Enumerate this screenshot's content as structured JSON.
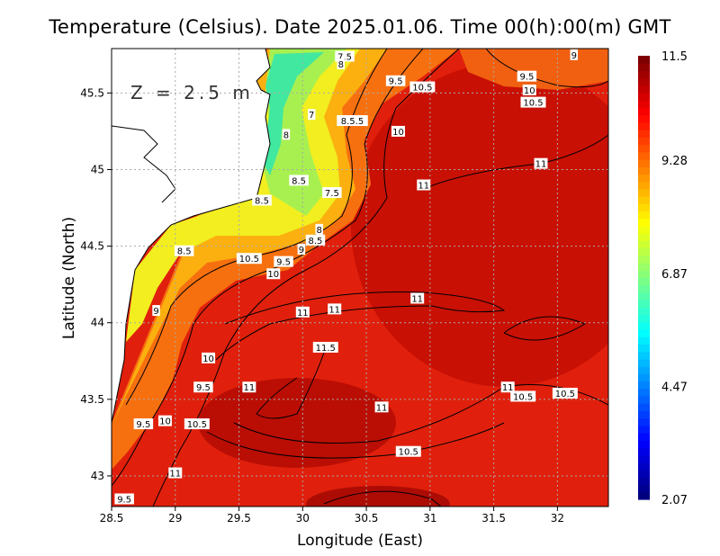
{
  "chart_data": {
    "type": "heatmap",
    "title": "Temperature (Celsius). Date 2025.01.06. Time 00(h):00(m) GMT",
    "xlabel": "Longitude (East)",
    "ylabel": "Latitude (North)",
    "xlim": [
      28.5,
      32.4
    ],
    "ylim": [
      42.8,
      45.79
    ],
    "xticks": [
      "28.5",
      "29",
      "29.5",
      "30",
      "30.5",
      "31",
      "31.5",
      "32"
    ],
    "xtick_values": [
      28.5,
      29,
      29.5,
      30,
      30.5,
      31,
      31.5,
      32
    ],
    "yticks": [
      "43",
      "43.5",
      "44",
      "44.5",
      "45",
      "45.5"
    ],
    "ytick_values": [
      43,
      43.5,
      44,
      44.5,
      45,
      45.5
    ],
    "grid": true,
    "annotation": "Z = 2.5 m",
    "colorbar": {
      "min": 2.07,
      "max": 11.5,
      "tick_labels": [
        "11.5",
        "9.28",
        "6.87",
        "4.47",
        "2.07"
      ],
      "tick_values": [
        11.5,
        9.28,
        6.87,
        4.47,
        2.07
      ],
      "colormap": [
        "#00007f",
        "#0000ff",
        "#0080ff",
        "#00ffff",
        "#80ff80",
        "#ffff00",
        "#ff8000",
        "#ff0000",
        "#7f0000"
      ]
    },
    "contour_labels": [
      {
        "text": "7.5",
        "lon": 30.33,
        "lat": 45.74
      },
      {
        "text": "8",
        "lon": 30.3,
        "lat": 45.69
      },
      {
        "text": "9",
        "lon": 32.13,
        "lat": 45.75
      },
      {
        "text": "9.5",
        "lon": 30.73,
        "lat": 45.58
      },
      {
        "text": "10.5",
        "lon": 30.94,
        "lat": 45.54
      },
      {
        "text": "9.5",
        "lon": 31.76,
        "lat": 45.61
      },
      {
        "text": "10",
        "lon": 31.78,
        "lat": 45.52
      },
      {
        "text": "10.5",
        "lon": 31.81,
        "lat": 45.44
      },
      {
        "text": "7",
        "lon": 30.07,
        "lat": 45.36
      },
      {
        "text": "8.5.5",
        "lon": 30.39,
        "lat": 45.32
      },
      {
        "text": "10",
        "lon": 30.75,
        "lat": 45.25
      },
      {
        "text": "8",
        "lon": 29.87,
        "lat": 45.23
      },
      {
        "text": "11",
        "lon": 31.87,
        "lat": 45.04
      },
      {
        "text": "8.5",
        "lon": 29.97,
        "lat": 44.93
      },
      {
        "text": "11",
        "lon": 30.95,
        "lat": 44.9
      },
      {
        "text": "7.5",
        "lon": 30.23,
        "lat": 44.85
      },
      {
        "text": "8.5",
        "lon": 29.68,
        "lat": 44.8
      },
      {
        "text": "8",
        "lon": 30.13,
        "lat": 44.61
      },
      {
        "text": "8.5",
        "lon": 30.1,
        "lat": 44.54
      },
      {
        "text": "9",
        "lon": 29.99,
        "lat": 44.48
      },
      {
        "text": "8.5",
        "lon": 29.07,
        "lat": 44.47
      },
      {
        "text": "10.5",
        "lon": 29.58,
        "lat": 44.42
      },
      {
        "text": "9.5",
        "lon": 29.85,
        "lat": 44.4
      },
      {
        "text": "10",
        "lon": 29.77,
        "lat": 44.32
      },
      {
        "text": "11",
        "lon": 30.9,
        "lat": 44.16
      },
      {
        "text": "9",
        "lon": 28.85,
        "lat": 44.08
      },
      {
        "text": "11",
        "lon": 30.0,
        "lat": 44.07
      },
      {
        "text": "11",
        "lon": 30.25,
        "lat": 44.09
      },
      {
        "text": "11.5",
        "lon": 30.18,
        "lat": 43.84
      },
      {
        "text": "10",
        "lon": 29.26,
        "lat": 43.77
      },
      {
        "text": "9.5",
        "lon": 29.22,
        "lat": 43.58
      },
      {
        "text": "11",
        "lon": 29.58,
        "lat": 43.58
      },
      {
        "text": "11",
        "lon": 31.61,
        "lat": 43.58
      },
      {
        "text": "10.5",
        "lon": 31.73,
        "lat": 43.52
      },
      {
        "text": "10.5",
        "lon": 32.06,
        "lat": 43.54
      },
      {
        "text": "11",
        "lon": 30.62,
        "lat": 43.45
      },
      {
        "text": "9.5",
        "lon": 28.75,
        "lat": 43.34
      },
      {
        "text": "10",
        "lon": 28.92,
        "lat": 43.36
      },
      {
        "text": "10.5",
        "lon": 29.17,
        "lat": 43.34
      },
      {
        "text": "10.5",
        "lon": 30.83,
        "lat": 43.16
      },
      {
        "text": "11",
        "lon": 29.0,
        "lat": 43.02
      },
      {
        "text": "9.5",
        "lon": 28.6,
        "lat": 42.85
      }
    ]
  }
}
